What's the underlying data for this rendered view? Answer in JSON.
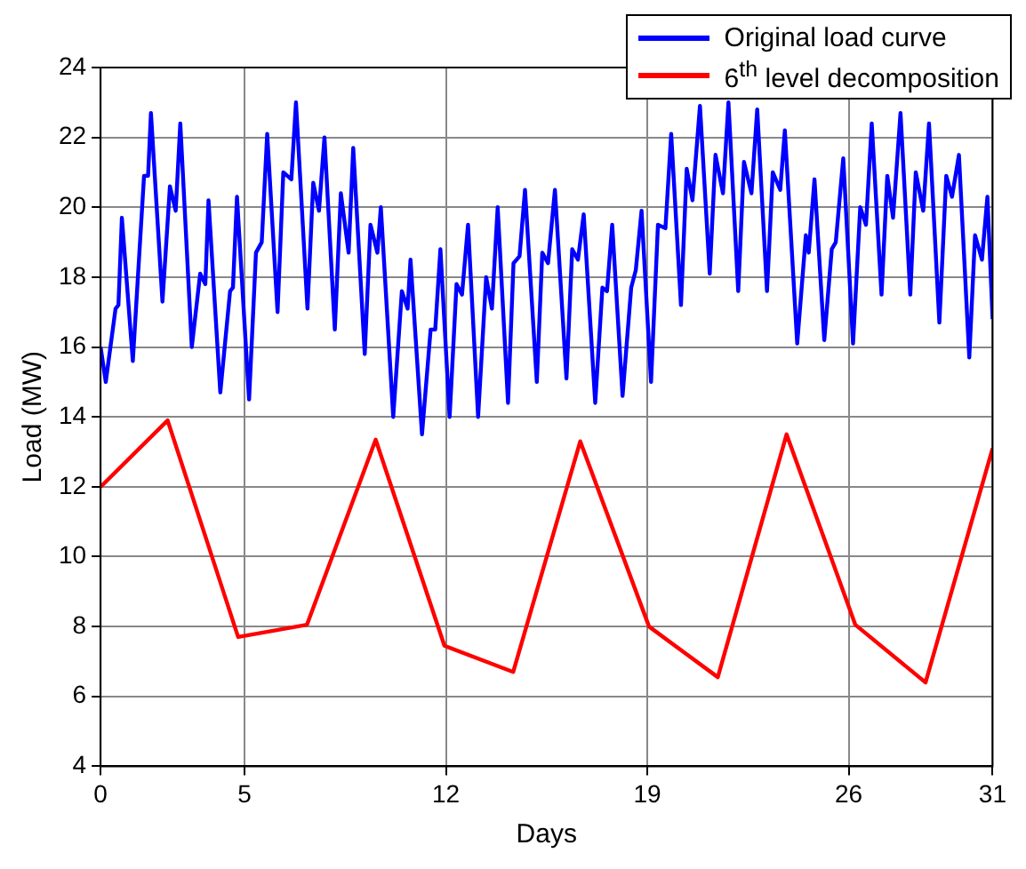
{
  "chart_data": {
    "type": "line",
    "xlabel": "Days",
    "ylabel": "Load (MW)",
    "xlim": [
      0,
      31
    ],
    "xticks": [
      0,
      5,
      12,
      19,
      26,
      31
    ],
    "ylim": [
      4,
      24
    ],
    "yticks": [
      4,
      6,
      8,
      10,
      12,
      14,
      16,
      18,
      20,
      22,
      24
    ],
    "grid": true,
    "legend": "top right",
    "marker": "none",
    "line_style": "solid",
    "series": [
      {
        "name": "Original load curve",
        "color": "#0000ff",
        "x": [
          0,
          0.18,
          0.52,
          0.62,
          0.74,
          1.12,
          1.51,
          1.65,
          1.75,
          2.15,
          2.41,
          2.61,
          2.77,
          3.17,
          3.46,
          3.64,
          3.75,
          4.16,
          4.5,
          4.6,
          4.74,
          5.16,
          5.4,
          5.6,
          5.79,
          6.15,
          6.35,
          6.63,
          6.79,
          7.19,
          7.39,
          7.59,
          7.78,
          8.14,
          8.35,
          8.62,
          8.78,
          9.18,
          9.38,
          9.62,
          9.74,
          10.17,
          10.47,
          10.67,
          10.77,
          11.17,
          11.47,
          11.63,
          11.81,
          12.13,
          12.37,
          12.56,
          12.77,
          13.12,
          13.4,
          13.6,
          13.8,
          14.16,
          14.35,
          14.56,
          14.75,
          15.16,
          15.35,
          15.55,
          15.79,
          16.19,
          16.39,
          16.59,
          16.79,
          17.19,
          17.44,
          17.6,
          17.78,
          18.14,
          18.44,
          18.6,
          18.8,
          19.13,
          19.37,
          19.63,
          19.83,
          20.17,
          20.37,
          20.57,
          20.83,
          21.17,
          21.37,
          21.63,
          21.82,
          22.16,
          22.36,
          22.62,
          22.82,
          23.16,
          23.36,
          23.62,
          23.78,
          24.21,
          24.51,
          24.61,
          24.81,
          25.15,
          25.41,
          25.55,
          25.81,
          26.15,
          26.4,
          26.6,
          26.8,
          27.14,
          27.34,
          27.54,
          27.8,
          28.14,
          28.33,
          28.59,
          28.79,
          29.15,
          29.39,
          29.59,
          29.83,
          30.19,
          30.39,
          30.63,
          30.82,
          31
        ],
        "values": [
          16.0,
          15.0,
          17.1,
          17.2,
          19.7,
          15.6,
          20.9,
          20.9,
          22.7,
          17.3,
          20.6,
          19.9,
          22.4,
          16.0,
          18.1,
          17.8,
          20.2,
          14.7,
          17.6,
          17.7,
          20.3,
          14.5,
          18.7,
          19.0,
          22.1,
          17.0,
          21.0,
          20.8,
          23.0,
          17.1,
          20.7,
          19.9,
          22.0,
          16.5,
          20.4,
          18.7,
          21.7,
          15.8,
          19.5,
          18.7,
          20.0,
          14.0,
          17.6,
          17.1,
          18.5,
          13.5,
          16.5,
          16.5,
          18.8,
          14.0,
          17.8,
          17.5,
          19.5,
          14.0,
          18.0,
          17.1,
          20.0,
          14.4,
          18.4,
          18.6,
          20.5,
          15.0,
          18.7,
          18.4,
          20.5,
          15.1,
          18.8,
          18.5,
          19.8,
          14.4,
          17.7,
          17.6,
          19.5,
          14.6,
          17.7,
          18.2,
          19.9,
          15.0,
          19.5,
          19.4,
          22.1,
          17.2,
          21.1,
          20.2,
          22.9,
          18.1,
          21.5,
          20.4,
          23.0,
          17.6,
          21.3,
          20.4,
          22.8,
          17.6,
          21.0,
          20.5,
          22.2,
          16.1,
          19.2,
          18.7,
          20.8,
          16.2,
          18.8,
          19.0,
          21.4,
          16.1,
          20.0,
          19.5,
          22.4,
          17.5,
          20.9,
          19.7,
          22.7,
          17.5,
          21.0,
          19.9,
          22.4,
          16.7,
          20.9,
          20.3,
          21.5,
          15.7,
          19.2,
          18.5,
          20.3,
          16.8
        ]
      },
      {
        "name": "6$^{th}$ level decomposition",
        "color": "#ff0000",
        "x": [
          0,
          2.33,
          4.78,
          7.17,
          9.56,
          11.95,
          14.34,
          16.67,
          19.06,
          21.45,
          23.84,
          26.23,
          28.67,
          31
        ],
        "values": [
          12.0,
          13.9,
          7.7,
          8.05,
          13.35,
          7.45,
          6.7,
          13.3,
          8.0,
          6.55,
          13.5,
          8.05,
          6.4,
          13.1
        ]
      }
    ]
  }
}
